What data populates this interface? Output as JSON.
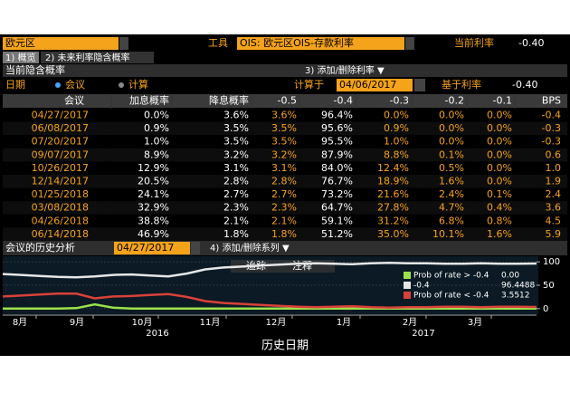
{
  "toolbar": {
    "region": "欧元区",
    "tool_label": "工具",
    "instrument": "OIS: 欧元区OIS-存款利率",
    "current_rate_label": "当前利率",
    "current_rate": "-0.40"
  },
  "tabs": [
    "1) 概览",
    "2) 未来利率隐含概率"
  ],
  "section": {
    "title": "当前隐含概率",
    "add_remove": "3) 添加/删除利率 ▼"
  },
  "options": {
    "date_label": "日期",
    "meeting": "会议",
    "calc": "计算",
    "calc_at_label": "计算于",
    "calc_date": "04/06/2017",
    "base_rate_label": "基于利率",
    "base_rate": "-0.40"
  },
  "table": {
    "headers": [
      "会议",
      "加息概率",
      "降息概率",
      "-0.5",
      "-0.4",
      "-0.3",
      "-0.2",
      "-0.1",
      "BPS"
    ],
    "rows": [
      [
        "04/27/2017",
        "0.0%",
        "3.6%",
        "3.6%",
        "96.4%",
        "0.0%",
        "0.0%",
        "0.0%",
        "-0.4"
      ],
      [
        "06/08/2017",
        "0.9%",
        "3.5%",
        "3.5%",
        "95.6%",
        "0.9%",
        "0.0%",
        "0.0%",
        "-0.3"
      ],
      [
        "07/20/2017",
        "1.0%",
        "3.5%",
        "3.5%",
        "95.5%",
        "1.0%",
        "0.0%",
        "0.0%",
        "-0.3"
      ],
      [
        "09/07/2017",
        "8.9%",
        "3.2%",
        "3.2%",
        "87.9%",
        "8.8%",
        "0.1%",
        "0.0%",
        "0.6"
      ],
      [
        "10/26/2017",
        "12.9%",
        "3.1%",
        "3.1%",
        "84.0%",
        "12.4%",
        "0.5%",
        "0.0%",
        "1.0"
      ],
      [
        "12/14/2017",
        "20.5%",
        "2.8%",
        "2.8%",
        "76.7%",
        "18.9%",
        "1.6%",
        "0.0%",
        "1.9"
      ],
      [
        "01/25/2018",
        "24.1%",
        "2.7%",
        "2.7%",
        "73.2%",
        "21.6%",
        "2.4%",
        "0.1%",
        "2.4"
      ],
      [
        "03/08/2018",
        "32.9%",
        "2.3%",
        "2.3%",
        "64.7%",
        "27.8%",
        "4.7%",
        "0.4%",
        "3.6"
      ],
      [
        "04/26/2018",
        "38.8%",
        "2.1%",
        "2.1%",
        "59.1%",
        "31.2%",
        "6.8%",
        "0.8%",
        "4.5"
      ],
      [
        "06/14/2018",
        "46.9%",
        "1.8%",
        "1.8%",
        "51.2%",
        "35.0%",
        "10.1%",
        "1.6%",
        "5.9"
      ]
    ]
  },
  "history": {
    "title": "会议的历史分析",
    "meeting_date": "04/27/2017",
    "add_remove": "4) 添加/删除系列 ▼",
    "track": "追踪",
    "annotate": "注释",
    "x_axis_title": "历史日期",
    "chart": {
      "type": "line",
      "ylim": [
        -12,
        112
      ],
      "yticks": [
        0,
        50,
        100
      ],
      "x_labels": [
        "8月",
        "9月",
        "10月",
        "11月",
        "12月",
        "1月",
        "2月",
        "3月"
      ],
      "years": [
        "2016",
        "2017"
      ],
      "series": [
        {
          "name": "Prob of rate > -0.4",
          "color": "#9be24a",
          "value_label": "0.00",
          "values": [
            0,
            0,
            0,
            0,
            1,
            9,
            2,
            0,
            0,
            0,
            0,
            0,
            0,
            0,
            0,
            0,
            0,
            0,
            0,
            0,
            0,
            0,
            0,
            0,
            0,
            0,
            0,
            0,
            0,
            0
          ]
        },
        {
          "name": "-0.4",
          "color": "#e6e6e6",
          "value_label": "96.4488",
          "values": [
            74,
            72,
            70,
            68,
            67,
            69,
            72,
            73,
            71,
            69,
            75,
            84,
            88,
            90,
            92,
            94,
            96,
            97,
            96,
            95,
            97,
            98,
            97,
            97,
            96,
            96,
            97,
            96,
            96,
            96.4488
          ]
        },
        {
          "name": "Prob of rate < -0.4",
          "color": "#d9413a",
          "value_label": "3.5512",
          "values": [
            26,
            28,
            30,
            32,
            32,
            22,
            26,
            27,
            29,
            31,
            25,
            16,
            12,
            10,
            8,
            6,
            4,
            3,
            4,
            5,
            3,
            2,
            3,
            3,
            4,
            4,
            3,
            4,
            4,
            3.5512
          ]
        }
      ]
    }
  }
}
